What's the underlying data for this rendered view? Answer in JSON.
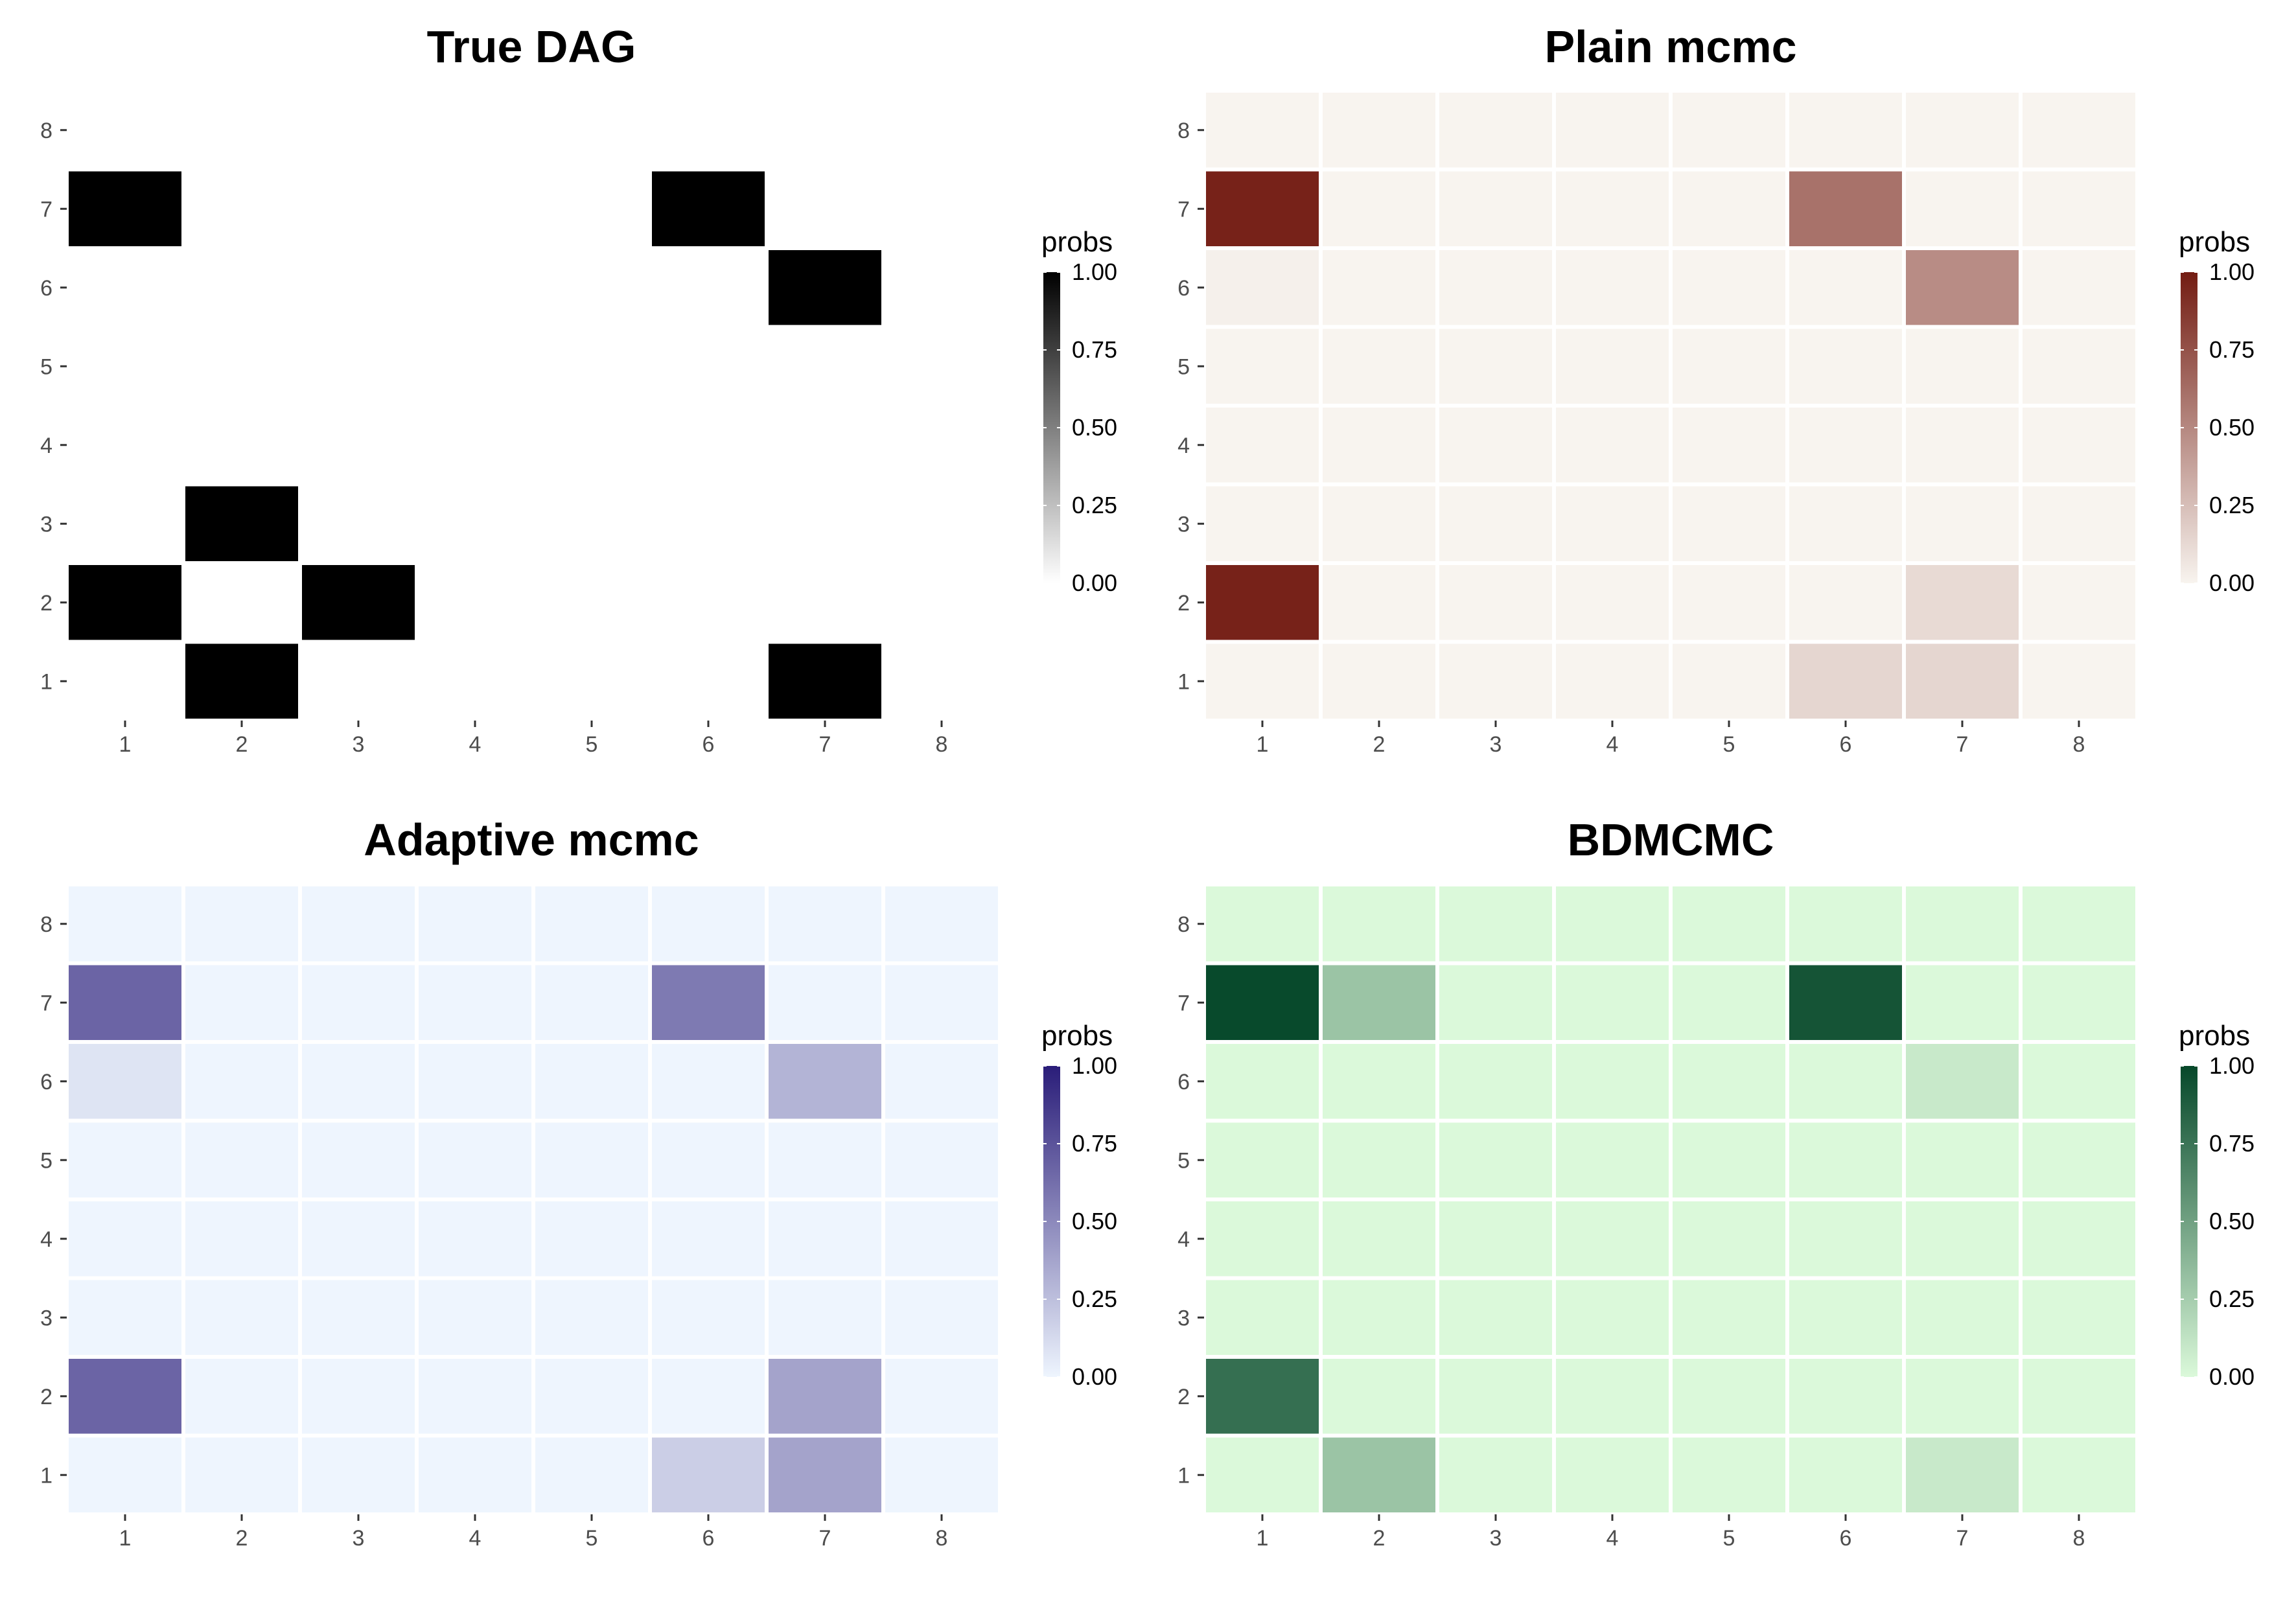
{
  "chart_data": [
    {
      "type": "heatmap",
      "title": "True DAG",
      "x": [
        "1",
        "2",
        "3",
        "4",
        "5",
        "6",
        "7",
        "8"
      ],
      "y": [
        "1",
        "2",
        "3",
        "4",
        "5",
        "6",
        "7",
        "8"
      ],
      "legend": {
        "title": "probs",
        "ticks": [
          "0.00",
          "0.25",
          "0.50",
          "0.75",
          "1.00"
        ]
      },
      "color_low": "#ffffff",
      "color_high": "#000000",
      "empty_color": "#ffffff",
      "grid": false,
      "cells": [
        [
          1,
          7,
          1
        ],
        [
          6,
          7,
          1
        ],
        [
          7,
          6,
          1
        ],
        [
          2,
          3,
          1
        ],
        [
          1,
          2,
          1
        ],
        [
          3,
          2,
          1
        ],
        [
          2,
          1,
          1
        ],
        [
          7,
          1,
          1
        ]
      ]
    },
    {
      "type": "heatmap",
      "title": "Plain mcmc",
      "x": [
        "1",
        "2",
        "3",
        "4",
        "5",
        "6",
        "7",
        "8"
      ],
      "y": [
        "1",
        "2",
        "3",
        "4",
        "5",
        "6",
        "7",
        "8"
      ],
      "legend": {
        "title": "probs",
        "ticks": [
          "0.00",
          "0.25",
          "0.50",
          "0.75",
          "1.00"
        ]
      },
      "color_low": "#f8f4ef",
      "color_high": "#731c12",
      "empty_color": "#f8f4ef",
      "grid": false,
      "cells": [
        [
          1,
          7,
          0.97
        ],
        [
          6,
          7,
          0.6
        ],
        [
          1,
          6,
          0.02
        ],
        [
          7,
          6,
          0.48
        ],
        [
          1,
          2,
          0.97
        ],
        [
          7,
          2,
          0.12
        ],
        [
          6,
          1,
          0.14
        ],
        [
          7,
          1,
          0.14
        ]
      ]
    },
    {
      "type": "heatmap",
      "title": "Adaptive mcmc",
      "x": [
        "1",
        "2",
        "3",
        "4",
        "5",
        "6",
        "7",
        "8"
      ],
      "y": [
        "1",
        "2",
        "3",
        "4",
        "5",
        "6",
        "7",
        "8"
      ],
      "legend": {
        "title": "probs",
        "ticks": [
          "0.00",
          "0.25",
          "0.50",
          "0.75",
          "1.00"
        ]
      },
      "color_low": "#eef5fe",
      "color_high": "#2a1d79",
      "empty_color": "#eef5fe",
      "grid": false,
      "cells": [
        [
          1,
          7,
          0.67
        ],
        [
          6,
          7,
          0.57
        ],
        [
          1,
          6,
          0.08
        ],
        [
          7,
          6,
          0.3
        ],
        [
          1,
          2,
          0.67
        ],
        [
          7,
          2,
          0.38
        ],
        [
          6,
          1,
          0.18
        ],
        [
          7,
          1,
          0.38
        ]
      ]
    },
    {
      "type": "heatmap",
      "title": "BDMCMC",
      "x": [
        "1",
        "2",
        "3",
        "4",
        "5",
        "6",
        "7",
        "8"
      ],
      "y": [
        "1",
        "2",
        "3",
        "4",
        "5",
        "6",
        "7",
        "8"
      ],
      "legend": {
        "title": "probs",
        "ticks": [
          "0.00",
          "0.25",
          "0.50",
          "0.75",
          "1.00"
        ]
      },
      "color_low": "#dbf9da",
      "color_high": "#06482a",
      "empty_color": "#dbf9da",
      "grid": false,
      "cells": [
        [
          1,
          7,
          0.99
        ],
        [
          2,
          7,
          0.3
        ],
        [
          6,
          7,
          0.93
        ],
        [
          7,
          6,
          0.09
        ],
        [
          1,
          2,
          0.78
        ],
        [
          2,
          1,
          0.3
        ],
        [
          7,
          1,
          0.09
        ]
      ]
    }
  ]
}
